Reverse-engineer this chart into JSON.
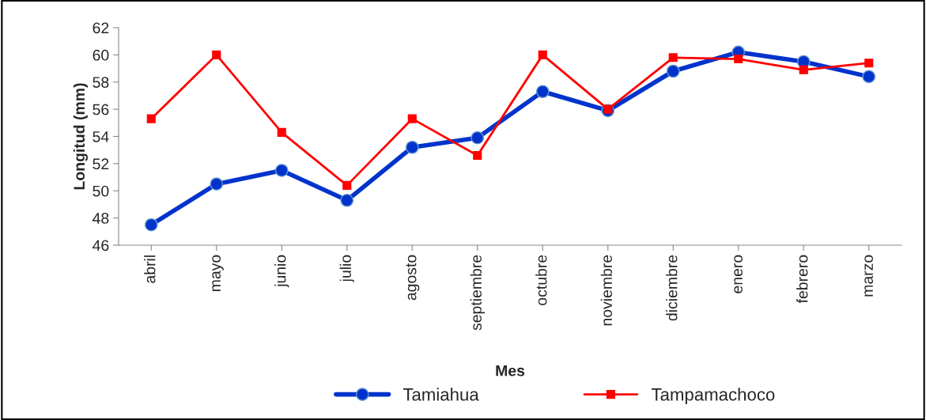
{
  "chart_data": {
    "type": "line",
    "xlabel": "Mes",
    "ylabel": "Longitud (mm)",
    "categories": [
      "abril",
      "mayo",
      "junio",
      "julio",
      "agosto",
      "septiembre",
      "octubre",
      "noviembre",
      "diciembre",
      "enero",
      "febrero",
      "marzo"
    ],
    "series": [
      {
        "name": "Tamiahua",
        "color": "#0033cc",
        "marker": "circle",
        "values": [
          47.5,
          50.5,
          51.5,
          49.3,
          53.2,
          53.9,
          57.3,
          55.9,
          58.8,
          60.2,
          59.5,
          58.4
        ]
      },
      {
        "name": "Tampamachoco",
        "color": "#ff0000",
        "marker": "square",
        "values": [
          55.3,
          60.0,
          54.3,
          50.4,
          55.3,
          52.6,
          60.0,
          56.0,
          59.8,
          59.7,
          58.9,
          59.4
        ]
      }
    ],
    "ylim": [
      46,
      62
    ],
    "yticks": [
      46,
      48,
      50,
      52,
      54,
      56,
      58,
      60,
      62
    ],
    "grid": false,
    "legend": "bottom"
  }
}
